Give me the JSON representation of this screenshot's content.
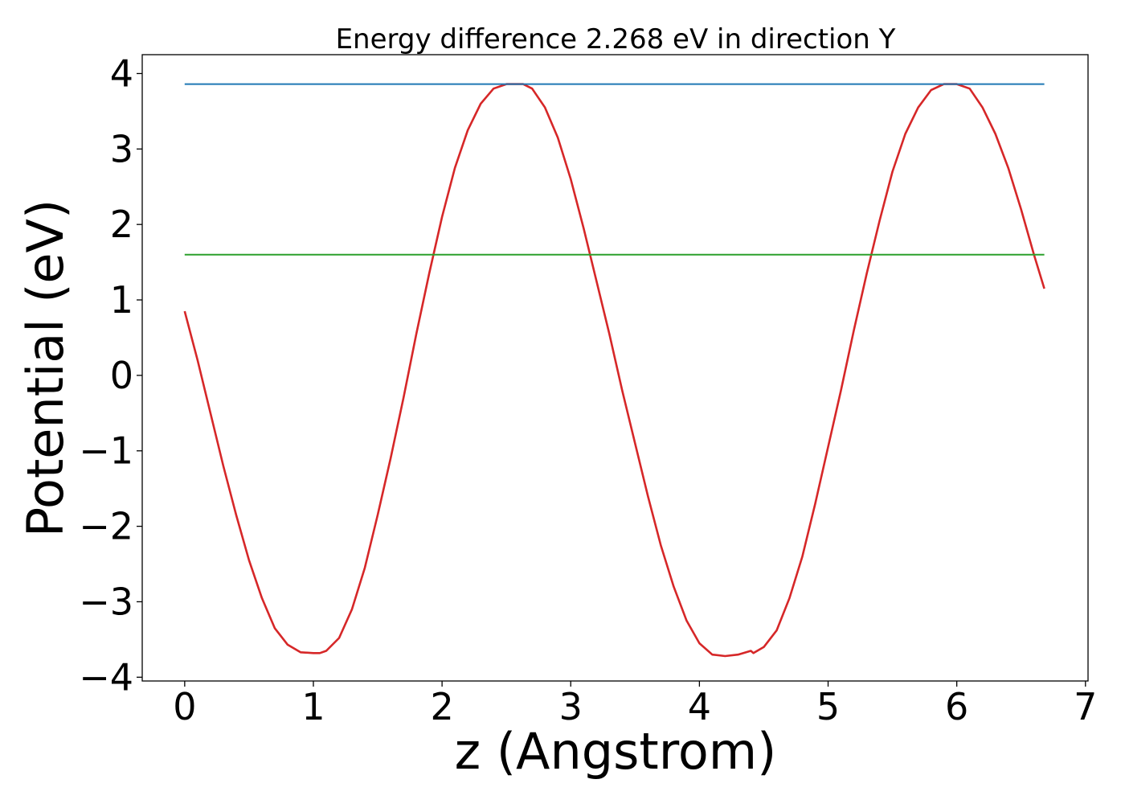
{
  "chart_data": {
    "type": "line",
    "title": "Energy difference 2.268 eV in direction Y",
    "xlabel": "z (Angstrom)",
    "ylabel": "Potential (eV)",
    "xlim": [
      -0.33,
      7.02
    ],
    "ylim": [
      -4.05,
      4.25
    ],
    "xticks": [
      0,
      1,
      2,
      3,
      4,
      5,
      6,
      7
    ],
    "xtick_labels": [
      "0",
      "1",
      "2",
      "3",
      "4",
      "5",
      "6",
      "7"
    ],
    "yticks": [
      4,
      3,
      2,
      1,
      0,
      -1,
      -2,
      -3,
      -4
    ],
    "ytick_labels": [
      "4",
      "3",
      "2",
      "1",
      "0",
      "−1",
      "−2",
      "−3",
      "−4"
    ],
    "grid": false,
    "legend": "none",
    "series": [
      {
        "color": "#d62728",
        "x": [
          0,
          0.1,
          0.2,
          0.3,
          0.4,
          0.5,
          0.6,
          0.7,
          0.8,
          0.9,
          1.0,
          1.05,
          1.1,
          1.2,
          1.3,
          1.4,
          1.5,
          1.6,
          1.7,
          1.8,
          1.9,
          2.0,
          2.1,
          2.2,
          2.3,
          2.4,
          2.5,
          2.6,
          2.63,
          2.7,
          2.8,
          2.9,
          3.0,
          3.1,
          3.2,
          3.3,
          3.4,
          3.5,
          3.6,
          3.7,
          3.8,
          3.9,
          4.0,
          4.1,
          4.2,
          4.3,
          4.4,
          4.42,
          4.5,
          4.6,
          4.7,
          4.8,
          4.9,
          5.0,
          5.1,
          5.2,
          5.3,
          5.4,
          5.5,
          5.6,
          5.7,
          5.8,
          5.9,
          6.0,
          6.1,
          6.2,
          6.3,
          6.4,
          6.5,
          6.6,
          6.68
        ],
        "y": [
          0.85,
          0.2,
          -0.5,
          -1.2,
          -1.85,
          -2.45,
          -2.95,
          -3.35,
          -3.57,
          -3.67,
          -3.68,
          -3.68,
          -3.65,
          -3.48,
          -3.1,
          -2.55,
          -1.85,
          -1.1,
          -0.3,
          0.55,
          1.35,
          2.1,
          2.75,
          3.25,
          3.6,
          3.8,
          3.86,
          3.86,
          3.86,
          3.8,
          3.55,
          3.15,
          2.6,
          1.95,
          1.25,
          0.55,
          -0.2,
          -0.9,
          -1.6,
          -2.25,
          -2.8,
          -3.25,
          -3.55,
          -3.7,
          -3.72,
          -3.7,
          -3.65,
          -3.68,
          -3.6,
          -3.38,
          -2.95,
          -2.4,
          -1.7,
          -0.95,
          -0.2,
          0.6,
          1.35,
          2.05,
          2.7,
          3.2,
          3.55,
          3.78,
          3.86,
          3.86,
          3.8,
          3.55,
          3.2,
          2.75,
          2.2,
          1.6,
          1.15
        ]
      },
      {
        "color": "#1f77b4",
        "x": [
          0,
          6.68
        ],
        "y": [
          3.86,
          3.86
        ]
      },
      {
        "color": "#2ca02c",
        "x": [
          0,
          6.68
        ],
        "y": [
          1.6,
          1.6
        ]
      }
    ]
  }
}
